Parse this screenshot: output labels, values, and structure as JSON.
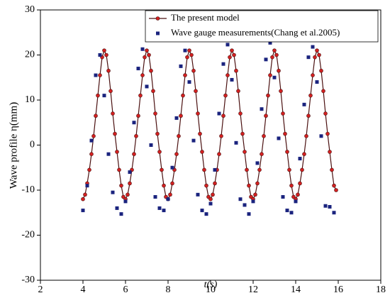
{
  "chart_data": {
    "type": "line",
    "xlabel": "t(s)",
    "ylabel": "Wave profile η(mm)",
    "xlim": [
      2,
      18
    ],
    "xticks": [
      2,
      4,
      6,
      8,
      10,
      12,
      14,
      16,
      18
    ],
    "ylim": [
      -30,
      30
    ],
    "yticks": [
      -30,
      -20,
      -10,
      0,
      10,
      20,
      30
    ],
    "legend": "upper right",
    "series": [
      {
        "name": "The present model",
        "type": "line",
        "color": "#d42020",
        "line_color": "#4a1010",
        "x": [
          4.0,
          4.1,
          4.2,
          4.3,
          4.4,
          4.5,
          4.6,
          4.7,
          4.8,
          4.9,
          5.0,
          5.1,
          5.2,
          5.3,
          5.4,
          5.5,
          5.6,
          5.7,
          5.8,
          5.9,
          6.0,
          6.1,
          6.2,
          6.3,
          6.4,
          6.5,
          6.6,
          6.7,
          6.8,
          6.9,
          7.0,
          7.1,
          7.2,
          7.3,
          7.4,
          7.5,
          7.6,
          7.7,
          7.8,
          7.9,
          8.0,
          8.1,
          8.2,
          8.3,
          8.4,
          8.5,
          8.6,
          8.7,
          8.8,
          8.9,
          9.0,
          9.1,
          9.2,
          9.3,
          9.4,
          9.5,
          9.6,
          9.7,
          9.8,
          9.9,
          10.0,
          10.1,
          10.2,
          10.3,
          10.4,
          10.5,
          10.6,
          10.7,
          10.8,
          10.9,
          11.0,
          11.1,
          11.2,
          11.3,
          11.4,
          11.5,
          11.6,
          11.7,
          11.8,
          11.9,
          12.0,
          12.1,
          12.2,
          12.3,
          12.4,
          12.5,
          12.6,
          12.7,
          12.8,
          12.9,
          13.0,
          13.1,
          13.2,
          13.3,
          13.4,
          13.5,
          13.6,
          13.7,
          13.8,
          13.9,
          14.0,
          14.1,
          14.2,
          14.3,
          14.4,
          14.5,
          14.6,
          14.7,
          14.8,
          14.9,
          15.0,
          15.1,
          15.2,
          15.3,
          15.4,
          15.5,
          15.6,
          15.7,
          15.8,
          15.9
        ],
        "values": [
          -12,
          -11,
          -8.5,
          -5.5,
          -2,
          2,
          6.5,
          11,
          15.5,
          19.5,
          21,
          20,
          16.5,
          12,
          7,
          2.5,
          -1.5,
          -5.5,
          -9,
          -11.5,
          -12,
          -11,
          -8.5,
          -5.5,
          -2,
          2,
          6.5,
          11,
          15.5,
          19.5,
          21,
          20,
          16.5,
          12,
          7,
          2.5,
          -1.5,
          -5.5,
          -9,
          -11.5,
          -12,
          -11,
          -8.5,
          -5.5,
          -2,
          2,
          6.5,
          11,
          15.5,
          19.5,
          21,
          20,
          16.5,
          12,
          7,
          2.5,
          -1.5,
          -5.5,
          -9,
          -11.5,
          -12,
          -11,
          -8.5,
          -5.5,
          -2,
          2,
          6.5,
          11,
          15.5,
          19.5,
          21,
          20,
          16.5,
          12,
          7,
          2.5,
          -1.5,
          -5.5,
          -9,
          -11.5,
          -12,
          -11,
          -8.5,
          -5.5,
          -2,
          2,
          6.5,
          11,
          15.5,
          19.5,
          21,
          20,
          16.5,
          12,
          7,
          2.5,
          -1.5,
          -5.5,
          -9,
          -11.5,
          -12,
          -11,
          -8.5,
          -5.5,
          -2,
          2,
          6.5,
          11,
          15.5,
          19.5,
          21,
          20,
          16.5,
          12,
          7,
          2.5,
          -1.5,
          -5.5,
          -9,
          -10
        ]
      },
      {
        "name": "Wave gauge measurements(Chang et al.2005)",
        "type": "scatter",
        "color": "#1a237e",
        "x": [
          4.0,
          4.2,
          4.4,
          4.6,
          4.8,
          5.0,
          5.2,
          5.4,
          5.6,
          5.8,
          6.0,
          6.2,
          6.4,
          6.6,
          6.8,
          7.0,
          7.2,
          7.4,
          7.6,
          7.8,
          8.0,
          8.2,
          8.4,
          8.6,
          8.8,
          9.0,
          9.2,
          9.4,
          9.6,
          9.8,
          10.0,
          10.2,
          10.4,
          10.6,
          10.8,
          11.0,
          11.2,
          11.4,
          11.6,
          11.8,
          12.0,
          12.2,
          12.4,
          12.6,
          12.8,
          13.0,
          13.2,
          13.4,
          13.6,
          13.8,
          14.0,
          14.2,
          14.4,
          14.6,
          14.8,
          15.0,
          15.2,
          15.4,
          15.6,
          15.8
        ],
        "values": [
          -14.5,
          -9,
          1,
          15.5,
          20,
          11,
          -2,
          -10.5,
          -14,
          -15.3,
          -12.5,
          -6,
          5,
          17,
          21.3,
          13,
          0,
          -11.5,
          -14,
          -14.5,
          -12,
          -5,
          6,
          17.5,
          21,
          14,
          1,
          -11,
          -14.5,
          -15.3,
          -13,
          -5.5,
          7,
          18,
          22.3,
          14.5,
          0.5,
          -12,
          -13.3,
          -15.3,
          -12.5,
          -4,
          8,
          19,
          22.7,
          15,
          1.5,
          -11.5,
          -14.5,
          -15,
          -12.5,
          -3,
          9,
          19.5,
          21.8,
          14,
          2,
          -13.5,
          -13.7,
          -15
        ]
      }
    ]
  }
}
